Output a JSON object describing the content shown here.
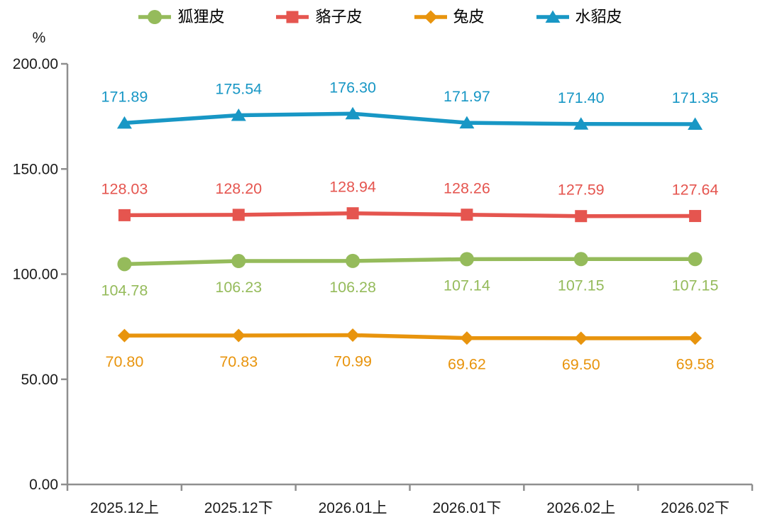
{
  "chart_data": {
    "type": "line",
    "title": "",
    "unit_label": "%",
    "categories": [
      "2025.12上",
      "2025.12下",
      "2026.01上",
      "2026.01下",
      "2026.02上",
      "2026.02下"
    ],
    "series": [
      {
        "name": "狐狸皮",
        "color": "#95BB5B",
        "marker": "circle",
        "label_position": "below",
        "values": [
          104.78,
          106.23,
          106.28,
          107.14,
          107.15,
          107.15
        ]
      },
      {
        "name": "貉子皮",
        "color": "#E5554F",
        "marker": "square",
        "label_position": "above",
        "values": [
          128.03,
          128.2,
          128.94,
          128.26,
          127.59,
          127.64
        ]
      },
      {
        "name": "兔皮",
        "color": "#E8940D",
        "marker": "diamond",
        "label_position": "below",
        "values": [
          70.8,
          70.83,
          70.99,
          69.62,
          69.5,
          69.58
        ]
      },
      {
        "name": "水貂皮",
        "color": "#1897C5",
        "marker": "triangle",
        "label_position": "above",
        "values": [
          171.89,
          175.54,
          176.3,
          171.97,
          171.4,
          171.35
        ]
      }
    ],
    "ylim": [
      0,
      200
    ],
    "yticks": [
      0,
      50,
      100,
      150,
      200
    ],
    "ytick_labels": [
      "0.00",
      "50.00",
      "100.00",
      "150.00",
      "200.00"
    ],
    "legend_position": "top",
    "grid": false,
    "axis_color": "#8F8F8F",
    "text_color": "#1A1A1A"
  }
}
